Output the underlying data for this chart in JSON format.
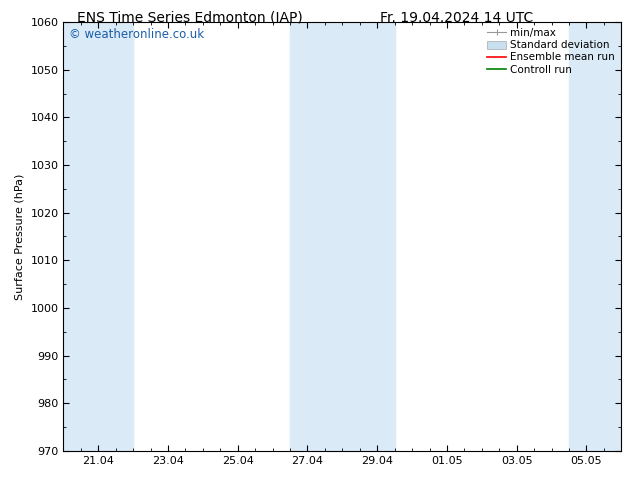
{
  "title_left": "ENS Time Series Edmonton (IAP)",
  "title_right": "Fr. 19.04.2024 14 UTC",
  "ylabel": "Surface Pressure (hPa)",
  "ylim": [
    970,
    1060
  ],
  "yticks": [
    970,
    980,
    990,
    1000,
    1010,
    1020,
    1030,
    1040,
    1050,
    1060
  ],
  "xtick_labels": [
    "21.04",
    "23.04",
    "25.04",
    "27.04",
    "29.04",
    "01.05",
    "03.05",
    "05.05"
  ],
  "xmin": 0.0,
  "xmax": 16.0,
  "shaded_bands": [
    {
      "xmin": 0.0,
      "xmax": 2.0
    },
    {
      "xmin": 6.5,
      "xmax": 9.5
    },
    {
      "xmin": 14.5,
      "xmax": 16.0
    }
  ],
  "shaded_color": "#daeaf7",
  "background_color": "#ffffff",
  "watermark_text": "© weatheronline.co.uk",
  "watermark_color": "#1a5faa",
  "legend_entries": [
    {
      "label": "min/max",
      "color": "#aaaaaa",
      "lw": 1.0,
      "style": "minmax"
    },
    {
      "label": "Standard deviation",
      "color": "#c8dff0",
      "lw": 8,
      "style": "band"
    },
    {
      "label": "Ensemble mean run",
      "color": "#ff0000",
      "lw": 1.5,
      "style": "line"
    },
    {
      "label": "Controll run",
      "color": "#008000",
      "lw": 1.5,
      "style": "line"
    }
  ],
  "title_fontsize": 10,
  "axis_label_fontsize": 8,
  "tick_fontsize": 8,
  "legend_fontsize": 7.5,
  "watermark_fontsize": 8.5,
  "minor_xtick_count": 3,
  "xtick_major_positions": [
    1,
    3,
    5,
    7,
    9,
    11,
    13,
    15
  ]
}
